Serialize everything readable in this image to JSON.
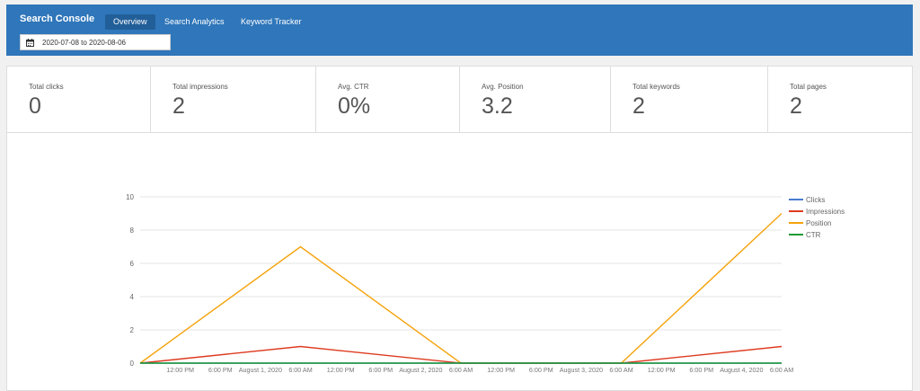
{
  "app": {
    "title": "Search Console"
  },
  "nav": [
    {
      "label": "Overview",
      "active": true
    },
    {
      "label": "Search Analytics",
      "active": false
    },
    {
      "label": "Keyword Tracker",
      "active": false
    }
  ],
  "date_range": "2020-07-08 to 2020-08-06",
  "stats": [
    {
      "label": "Total clicks",
      "value": "0"
    },
    {
      "label": "Total impressions",
      "value": "2"
    },
    {
      "label": "Avg. CTR",
      "value": "0%"
    },
    {
      "label": "Avg. Position",
      "value": "3.2"
    },
    {
      "label": "Total keywords",
      "value": "2"
    },
    {
      "label": "Total pages",
      "value": "2"
    }
  ],
  "chart_data": {
    "type": "line",
    "title": "",
    "xlabel": "",
    "ylabel": "",
    "ylim": [
      0,
      10
    ],
    "yticks": [
      0,
      2,
      4,
      6,
      8,
      10
    ],
    "grid": true,
    "legend_position": "right",
    "x_points": [
      "2020-07-31 06:00",
      "2020-08-01 06:00",
      "2020-08-02 06:00",
      "2020-08-03 06:00",
      "2020-08-04 06:00"
    ],
    "x_tick_labels": [
      "12:00 PM",
      "6:00 PM",
      "August 1, 2020",
      "6:00 AM",
      "12:00 PM",
      "6:00 PM",
      "August 2, 2020",
      "6:00 AM",
      "12:00 PM",
      "6:00 PM",
      "August 3, 2020",
      "6:00 AM",
      "12:00 PM",
      "6:00 PM",
      "August 4, 2020",
      "6:00 AM"
    ],
    "series": [
      {
        "name": "Clicks",
        "color": "#4a7bd0",
        "values": [
          0,
          0,
          0,
          0,
          0
        ]
      },
      {
        "name": "Impressions",
        "color": "#de3b20",
        "values": [
          0,
          1,
          0,
          0,
          1
        ]
      },
      {
        "name": "Position",
        "color": "#f5a30c",
        "values": [
          0,
          7,
          0,
          0,
          9
        ]
      },
      {
        "name": "CTR",
        "color": "#1a9a32",
        "values": [
          0,
          0,
          0,
          0,
          0
        ]
      }
    ]
  }
}
